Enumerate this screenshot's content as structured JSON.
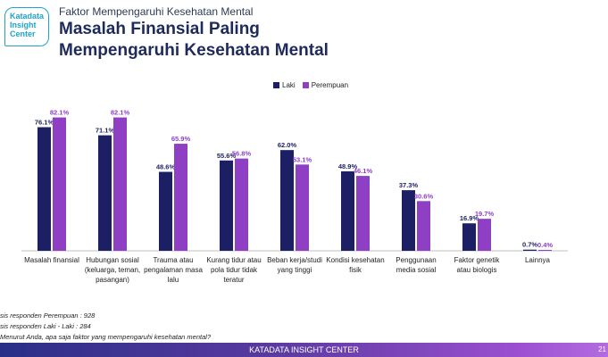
{
  "logo": {
    "line1": "Katadata",
    "line2": "Insight",
    "line3": "Center"
  },
  "header": {
    "subtitle": "Faktor Mempengaruhi Kesehatan Mental",
    "title_line1": "Masalah Finansial Paling",
    "title_line2": "Mempengaruhi Kesehatan Mental"
  },
  "chart_data": {
    "type": "bar",
    "title": "",
    "xlabel": "",
    "ylabel": "",
    "ylim": [
      0,
      100
    ],
    "grid": false,
    "legend_position": "top-center",
    "categories": [
      [
        "Masalah finansial"
      ],
      [
        "Hubungan sosial",
        "(keluarga, teman,",
        "pasangan)"
      ],
      [
        "Trauma atau",
        "pengalaman masa",
        "lalu"
      ],
      [
        "Kurang tidur atau",
        "pola tidur tidak",
        "teratur"
      ],
      [
        "Beban kerja/studi",
        "yang tinggi"
      ],
      [
        "Kondisi kesehatan",
        "fisik"
      ],
      [
        "Penggunaan",
        "media sosial"
      ],
      [
        "Faktor genetik",
        "atau biologis"
      ],
      [
        "Lainnya"
      ]
    ],
    "series": [
      {
        "name": "Laki",
        "color": "#1c1f63",
        "values": [
          76.1,
          71.1,
          48.6,
          55.6,
          62.0,
          48.9,
          37.3,
          16.9,
          0.7
        ],
        "labels": [
          "76.1%",
          "71.1%",
          "48.6%",
          "55.6%",
          "62.0%",
          "48.9%",
          "37.3%",
          "16.9%",
          "0.7%"
        ]
      },
      {
        "name": "Perempuan",
        "color": "#8e3fc4",
        "values": [
          82.1,
          82.1,
          65.9,
          56.8,
          53.1,
          46.1,
          30.6,
          19.7,
          0.4
        ],
        "labels": [
          "82.1%",
          "82.1%",
          "65.9%",
          "56.8%",
          "53.1%",
          "46.1%",
          "30.6%",
          "19.7%",
          "0.4%"
        ]
      }
    ]
  },
  "notes": {
    "line1": "sis responden Perempuan : 928",
    "line2": "sis responden Laki - Laki : 284",
    "line3": "Menurut Anda, apa saja faktor yang mempengaruhi kesehatan mental?"
  },
  "footer": {
    "text": "KATADATA INSIGHT CENTER",
    "page": "21"
  }
}
